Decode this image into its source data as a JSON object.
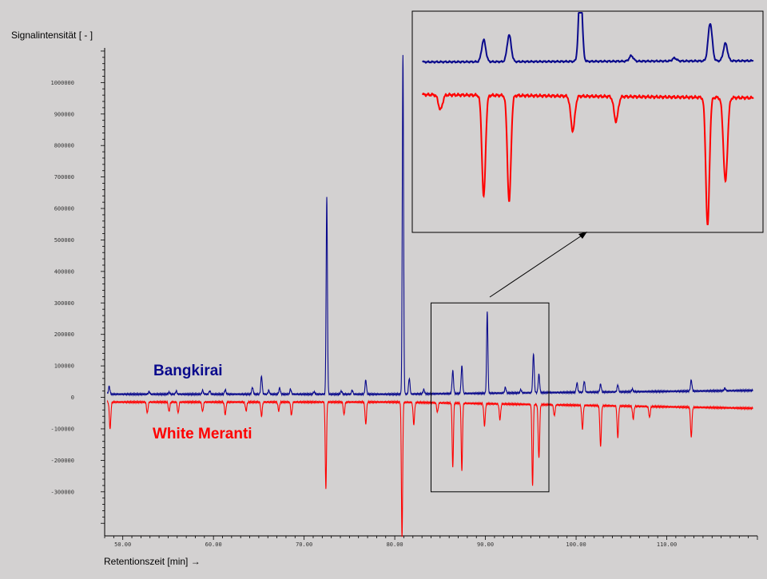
{
  "chart_data": {
    "type": "line",
    "ylabel": "Signalintensität [ - ]",
    "xlabel": "Retentionszeit [min] →",
    "xlim": [
      48,
      120
    ],
    "ylim": [
      -440000,
      1110000
    ],
    "y_ticks": [
      1000000,
      900000,
      800000,
      700000,
      600000,
      500000,
      400000,
      300000,
      200000,
      100000,
      0,
      -100000,
      -200000,
      -300000
    ],
    "y_tick_labels": [
      "1000000",
      "900000",
      "800000",
      "700000",
      "600000",
      "500000",
      "400000",
      "300000",
      "200000",
      "100000",
      "0",
      "-100000",
      "-200000",
      "-300000"
    ],
    "x_ticks": [
      50,
      60,
      70,
      80,
      90,
      100,
      110
    ],
    "x_tick_labels": [
      "50.00",
      "60.00",
      "70.00",
      "80.00",
      "90.00",
      "100.00",
      "110.00"
    ],
    "series": [
      {
        "name": "Bangkirai",
        "color": "#0a0a8c",
        "baseline": 10000,
        "tail_rise": 12000,
        "peaks": [
          {
            "x": 48.5,
            "y": 25000
          },
          {
            "x": 52.9,
            "y": 8000
          },
          {
            "x": 55.1,
            "y": 6000
          },
          {
            "x": 55.9,
            "y": 10000
          },
          {
            "x": 58.8,
            "y": 12000
          },
          {
            "x": 59.6,
            "y": 10000
          },
          {
            "x": 61.3,
            "y": 14000
          },
          {
            "x": 64.3,
            "y": 22000
          },
          {
            "x": 65.3,
            "y": 58000
          },
          {
            "x": 66.1,
            "y": 12000
          },
          {
            "x": 67.3,
            "y": 20000
          },
          {
            "x": 68.5,
            "y": 16000
          },
          {
            "x": 71.1,
            "y": 8000
          },
          {
            "x": 72.5,
            "y": 625000
          },
          {
            "x": 74.1,
            "y": 10000
          },
          {
            "x": 75.3,
            "y": 12000
          },
          {
            "x": 76.8,
            "y": 45000
          },
          {
            "x": 80.9,
            "y": 1080000
          },
          {
            "x": 81.6,
            "y": 50000
          },
          {
            "x": 83.2,
            "y": 14000
          },
          {
            "x": 86.4,
            "y": 72000
          },
          {
            "x": 87.4,
            "y": 88000
          },
          {
            "x": 90.2,
            "y": 260000
          },
          {
            "x": 92.2,
            "y": 18000
          },
          {
            "x": 93.9,
            "y": 10000
          },
          {
            "x": 95.3,
            "y": 125000
          },
          {
            "x": 95.9,
            "y": 58000
          },
          {
            "x": 100.1,
            "y": 30000
          },
          {
            "x": 100.9,
            "y": 35000
          },
          {
            "x": 102.7,
            "y": 25000
          },
          {
            "x": 104.6,
            "y": 22000
          },
          {
            "x": 106.2,
            "y": 8000
          },
          {
            "x": 112.7,
            "y": 35000
          },
          {
            "x": 116.4,
            "y": 8000
          }
        ]
      },
      {
        "name": "White Meranti",
        "color": "#ff0000",
        "baseline": -15000,
        "tail_rise": -20000,
        "peaks": [
          {
            "x": 48.6,
            "y": -85000
          },
          {
            "x": 52.7,
            "y": -35000
          },
          {
            "x": 55.1,
            "y": -30000
          },
          {
            "x": 56.1,
            "y": -35000
          },
          {
            "x": 58.8,
            "y": -30000
          },
          {
            "x": 61.3,
            "y": -40000
          },
          {
            "x": 63.6,
            "y": -28000
          },
          {
            "x": 65.3,
            "y": -45000
          },
          {
            "x": 67.2,
            "y": -28000
          },
          {
            "x": 68.6,
            "y": -42000
          },
          {
            "x": 72.4,
            "y": -275000
          },
          {
            "x": 74.4,
            "y": -40000
          },
          {
            "x": 76.8,
            "y": -70000
          },
          {
            "x": 80.8,
            "y": -430000
          },
          {
            "x": 82.1,
            "y": -70000
          },
          {
            "x": 84.7,
            "y": -30000
          },
          {
            "x": 86.4,
            "y": -205000
          },
          {
            "x": 87.4,
            "y": -215000
          },
          {
            "x": 89.9,
            "y": -70000
          },
          {
            "x": 91.6,
            "y": -50000
          },
          {
            "x": 95.2,
            "y": -260000
          },
          {
            "x": 95.9,
            "y": -170000
          },
          {
            "x": 97.6,
            "y": -35000
          },
          {
            "x": 100.7,
            "y": -75000
          },
          {
            "x": 102.7,
            "y": -130000
          },
          {
            "x": 104.6,
            "y": -100000
          },
          {
            "x": 106.3,
            "y": -40000
          },
          {
            "x": 108.1,
            "y": -35000
          },
          {
            "x": 112.7,
            "y": -95000
          }
        ]
      }
    ],
    "inset": {
      "zoom_xlim": [
        84,
        97
      ],
      "zoom_ylim": [
        -300000,
        300000
      ],
      "target_ylim": [
        -230000,
        145000
      ]
    }
  }
}
